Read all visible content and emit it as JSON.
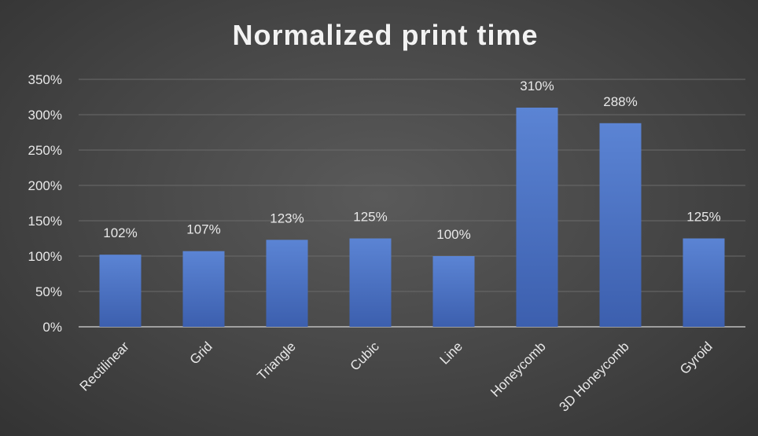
{
  "chart_data": {
    "type": "bar",
    "title": "Normalized print time",
    "xlabel": "",
    "ylabel": "",
    "categories": [
      "Rectilinear",
      "Grid",
      "Triangle",
      "Cubic",
      "Line",
      "Honeycomb",
      "3D Honeycomb",
      "Gyroid"
    ],
    "values": [
      102,
      107,
      123,
      125,
      100,
      310,
      288,
      125
    ],
    "data_labels": [
      "102%",
      "107%",
      "123%",
      "125%",
      "100%",
      "310%",
      "288%",
      "125%"
    ],
    "ylim": [
      0,
      350
    ],
    "yticks": [
      0,
      50,
      100,
      150,
      200,
      250,
      300,
      350
    ],
    "ytick_labels": [
      "0%",
      "50%",
      "100%",
      "150%",
      "200%",
      "250%",
      "300%",
      "350%"
    ],
    "grid": true,
    "legend": "none",
    "bar_color": "#4a72c4"
  }
}
